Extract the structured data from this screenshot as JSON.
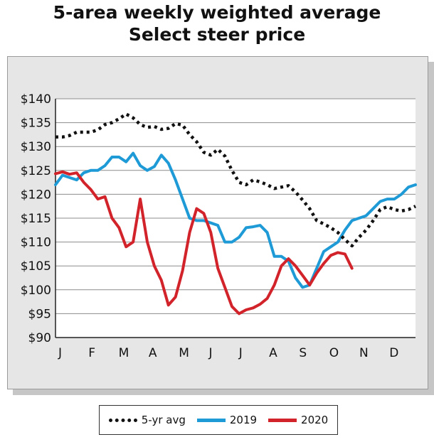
{
  "chart_data": {
    "type": "line",
    "title": "5-area weekly weighted average\nSelect steer price",
    "title_lines": [
      "5-area weekly weighted average",
      "Select steer price"
    ],
    "x_labels": [
      "J",
      "F",
      "M",
      "A",
      "M",
      "J",
      "J",
      "A",
      "S",
      "O",
      "N",
      "D"
    ],
    "ylim": [
      90,
      140
    ],
    "y_ticks": [
      140,
      135,
      130,
      125,
      120,
      115,
      110,
      105,
      100,
      95,
      90
    ],
    "y_tick_labels": [
      "$140",
      "$135",
      "$130",
      "$125",
      "$120",
      "$115",
      "$110",
      "$105",
      "$100",
      "$95",
      "$90"
    ],
    "grid": "horizontal",
    "legend_position": "bottom",
    "series": [
      {
        "name": "5-yr avg",
        "color": "#111111",
        "style": "dotted",
        "x_weeks": [
          1,
          2,
          3,
          4,
          5,
          6,
          7,
          8,
          9,
          10,
          11,
          12,
          13,
          14,
          15,
          16,
          17,
          18,
          19,
          20,
          21,
          22,
          23,
          24,
          25,
          26,
          27,
          28,
          29,
          30,
          31,
          32,
          33,
          34,
          35,
          36,
          37,
          38,
          39,
          40,
          41,
          42,
          43,
          44,
          45,
          46,
          47,
          48,
          49,
          50,
          51,
          52
        ],
        "values": [
          132,
          132,
          132.3,
          133,
          133,
          133,
          133.5,
          134.6,
          135,
          135.8,
          136.8,
          136,
          134.6,
          134,
          134.2,
          133.6,
          133.8,
          134.8,
          134.5,
          132.5,
          131,
          128.8,
          128.2,
          129.4,
          128,
          125,
          122.5,
          122,
          123,
          122.6,
          122,
          121.2,
          121.5,
          121.8,
          120.5,
          118.8,
          117,
          114.5,
          113.8,
          113,
          112,
          110.5,
          109.2,
          111,
          112.5,
          114.5,
          116.8,
          117.4,
          116.8,
          116.5,
          116.8,
          117.5
        ]
      },
      {
        "name": "2019",
        "color": "#1e9ad6",
        "style": "solid",
        "x_weeks": [
          1,
          2,
          3,
          4,
          5,
          6,
          7,
          8,
          9,
          10,
          11,
          12,
          13,
          14,
          15,
          16,
          17,
          18,
          19,
          20,
          21,
          22,
          23,
          24,
          25,
          26,
          27,
          28,
          29,
          30,
          31,
          32,
          33,
          34,
          35,
          36,
          37,
          38,
          39,
          40,
          41,
          42,
          43,
          44,
          45,
          46,
          47,
          48,
          49,
          50,
          51,
          52
        ],
        "values": [
          122,
          124,
          123.5,
          123,
          124.5,
          125,
          125,
          126,
          127.8,
          127.8,
          126.8,
          128.6,
          126,
          125,
          125.8,
          128.2,
          126.5,
          123,
          119,
          115,
          114.5,
          114.5,
          114,
          113.5,
          110,
          110,
          111,
          113,
          113.2,
          113.5,
          112,
          107,
          107,
          106,
          102.5,
          100.5,
          101,
          104.5,
          108,
          109,
          110,
          112.5,
          114.5,
          115,
          115.5,
          117,
          118.5,
          119,
          119,
          120,
          121.5,
          122
        ]
      },
      {
        "name": "2020",
        "color": "#d2232a",
        "style": "solid",
        "x_weeks": [
          1,
          2,
          3,
          4,
          5,
          6,
          7,
          8,
          9,
          10,
          11,
          12,
          13,
          14,
          15,
          16,
          17,
          18,
          19,
          20,
          21,
          22,
          23,
          24,
          25,
          26,
          27,
          28,
          29,
          30,
          31,
          32,
          33,
          34,
          35,
          36,
          37,
          38,
          39,
          40,
          41,
          42,
          43
        ],
        "values": [
          124.3,
          124.7,
          124.2,
          124.5,
          122.5,
          121,
          119,
          119.5,
          115,
          113,
          109,
          110,
          119,
          110,
          105,
          102,
          96.8,
          98.5,
          104,
          112,
          117,
          116,
          112,
          104.5,
          100.5,
          96.5,
          95,
          95.8,
          96.2,
          97,
          98.2,
          101,
          105,
          106.5,
          105,
          103,
          101,
          103.5,
          105.5,
          107.2,
          107.8,
          107.5,
          104.5
        ]
      }
    ]
  }
}
